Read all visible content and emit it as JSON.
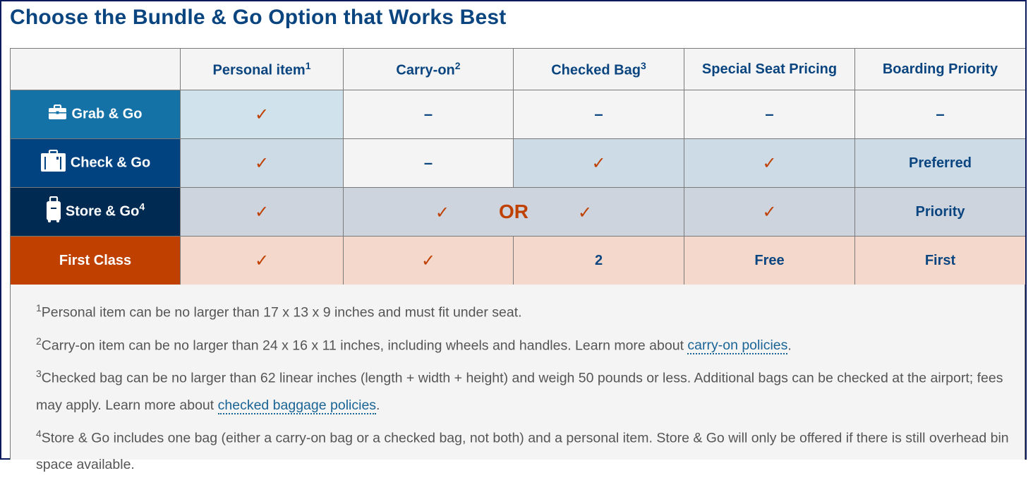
{
  "title": "Choose the Bundle & Go Option that Works Best",
  "columns": [
    {
      "label": "Personal item",
      "sup": "1"
    },
    {
      "label": "Carry-on",
      "sup": "2"
    },
    {
      "label": "Checked Bag",
      "sup": "3"
    },
    {
      "label": "Special Seat Pricing",
      "sup": ""
    },
    {
      "label": "Boarding Priority",
      "sup": ""
    }
  ],
  "rows": [
    {
      "label": "Grab & Go",
      "sup": "",
      "icon": "briefcase-icon",
      "color": "#1572a6",
      "cells": [
        "✓",
        "–",
        "–",
        "–",
        "–"
      ]
    },
    {
      "label": "Check & Go",
      "sup": "",
      "icon": "suitcase-icon",
      "color": "#004380",
      "cells": [
        "✓",
        "–",
        "✓",
        "✓",
        "Preferred"
      ]
    },
    {
      "label": "Store & Go",
      "sup": "4",
      "icon": "rolling-luggage-icon",
      "color": "#012a52",
      "cells": [
        "✓",
        "✓",
        "OR",
        "✓",
        "✓",
        "Priority"
      ]
    },
    {
      "label": "First Class",
      "sup": "",
      "color": "#c04000",
      "cells": [
        "✓",
        "✓",
        "2",
        "Free",
        "First"
      ]
    }
  ],
  "footnotes": [
    {
      "num": "1",
      "text": "Personal item can be no larger than 17 x 13 x 9 inches and must fit under seat."
    },
    {
      "num": "2",
      "text": "Carry-on item can be no larger than 24 x 16 x 11 inches, including wheels and handles. Learn more about ",
      "link": "carry-on policies",
      "after": "."
    },
    {
      "num": "3",
      "text": "Checked bag can be no larger than 62 linear inches (length + width + height) and weigh 50 pounds or less. Additional bags can be checked at the airport; fees may apply. Learn more about ",
      "link": "checked baggage policies",
      "after": "."
    },
    {
      "num": "4",
      "text": "Store & Go includes one bag (either a carry-on bag or a checked bag, not both) and a personal item. Store & Go will only be offered if there is still overhead bin space available."
    }
  ],
  "colors": {
    "heading": "#0a4580",
    "check": "#c04000",
    "link": "#1a6496"
  }
}
